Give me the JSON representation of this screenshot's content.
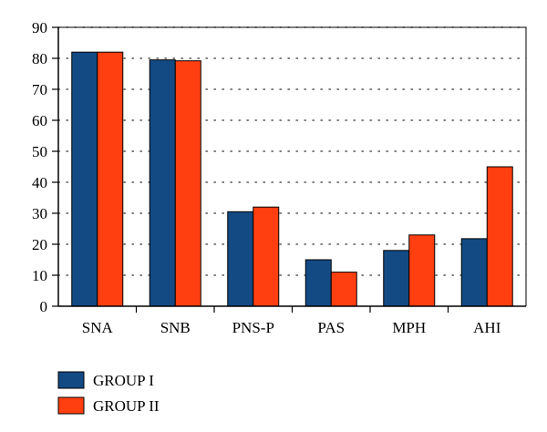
{
  "chart_data": {
    "type": "bar",
    "categories": [
      "SNA",
      "SNB",
      "PNS-P",
      "PAS",
      "MPH",
      "AHI"
    ],
    "series": [
      {
        "name": "GROUP I",
        "values": [
          82,
          79.5,
          30.5,
          15,
          18,
          21.8
        ]
      },
      {
        "name": "GROUP II",
        "values": [
          82,
          79.2,
          32,
          11,
          23,
          45
        ]
      }
    ],
    "ylim": [
      0,
      90
    ],
    "yticks": [
      0,
      10,
      20,
      30,
      40,
      50,
      60,
      70,
      80,
      90
    ],
    "grid": "horizontal dotted",
    "legend_position": "bottom-left",
    "title": "",
    "xlabel": "",
    "ylabel": ""
  },
  "colors": {
    "series": [
      "#134a84",
      "#ff3f10"
    ],
    "axis": "#000000",
    "grid": "#555555"
  }
}
